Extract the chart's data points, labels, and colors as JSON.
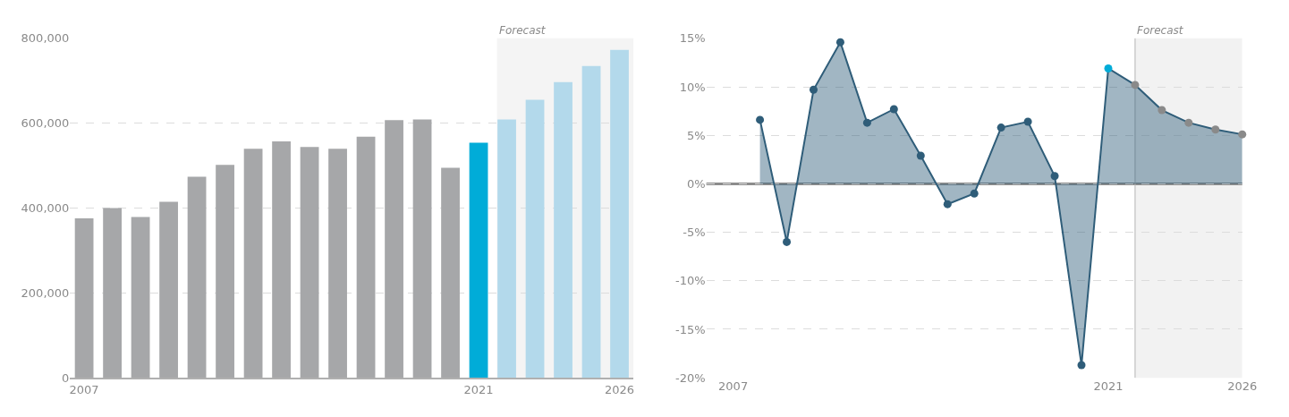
{
  "chart_data": [
    {
      "type": "bar",
      "x": [
        2007,
        2008,
        2009,
        2010,
        2011,
        2012,
        2013,
        2014,
        2015,
        2016,
        2017,
        2018,
        2019,
        2020,
        2021,
        2022,
        2023,
        2024,
        2025,
        2026
      ],
      "values": [
        376000,
        400000,
        379000,
        415000,
        474000,
        502000,
        540000,
        557000,
        544000,
        540000,
        568000,
        607000,
        609000,
        495000,
        554000,
        609000,
        655000,
        697000,
        735000,
        773000
      ],
      "colors": [
        "#a6a7a9",
        "#a6a7a9",
        "#a6a7a9",
        "#a6a7a9",
        "#a6a7a9",
        "#a6a7a9",
        "#a6a7a9",
        "#a6a7a9",
        "#a6a7a9",
        "#a6a7a9",
        "#a6a7a9",
        "#a6a7a9",
        "#a6a7a9",
        "#a6a7a9",
        "#00acd8",
        "#b3d9eb",
        "#b3d9eb",
        "#b3d9eb",
        "#b3d9eb",
        "#b3d9eb"
      ],
      "xlim": [
        2006.5,
        2026.5
      ],
      "xticks": [
        2007,
        2021,
        2026
      ],
      "ylim": [
        0,
        800000
      ],
      "yticks": [
        {
          "value": 0,
          "label": "0"
        },
        {
          "value": 200000,
          "label": "200,000"
        },
        {
          "value": 400000,
          "label": "400,000"
        },
        {
          "value": 600000,
          "label": "600,000"
        },
        {
          "value": 800000,
          "label": "800,000"
        }
      ],
      "grid": "y",
      "bands": [
        {
          "axis": "x",
          "from": 2021.65,
          "to": 2026.5,
          "label": "Forecast",
          "color": "#f4f4f4"
        }
      ]
    },
    {
      "type": "area",
      "marker": "circle",
      "x": [
        2008,
        2009,
        2010,
        2011,
        2012,
        2013,
        2014,
        2015,
        2016,
        2017,
        2018,
        2019,
        2020,
        2021,
        2022,
        2023,
        2024,
        2025,
        2026
      ],
      "series": [
        {
          "color": "#2f5d79",
          "values": [
            6.6,
            -6.0,
            9.7,
            14.6,
            6.3,
            7.7,
            2.9,
            -2.1,
            -1.0,
            5.8,
            6.4,
            0.8,
            -18.7,
            11.9,
            10.2,
            7.6,
            6.3,
            5.6,
            5.1
          ],
          "colors": [
            "#2f5d79",
            "#2f5d79",
            "#2f5d79",
            "#2f5d79",
            "#2f5d79",
            "#2f5d79",
            "#2f5d79",
            "#2f5d79",
            "#2f5d79",
            "#2f5d79",
            "#2f5d79",
            "#2f5d79",
            "#2f5d79",
            "#00acd8",
            "#8a8a8a",
            "#8a8a8a",
            "#8a8a8a",
            "#8a8a8a",
            "#8a8a8a"
          ]
        }
      ],
      "xlim": [
        2006,
        2026
      ],
      "xticks": [
        2007,
        2021,
        2026
      ],
      "ylim": [
        -20,
        15
      ],
      "yticks": [
        {
          "value": -20,
          "label": "-20%"
        },
        {
          "value": -15,
          "label": "-15%"
        },
        {
          "value": -10,
          "label": "-10%"
        },
        {
          "value": -5,
          "label": "-5%"
        },
        {
          "value": 0,
          "label": "0%"
        },
        {
          "value": 5,
          "label": "5%"
        },
        {
          "value": 10,
          "label": "10%"
        },
        {
          "value": 15,
          "label": "15%"
        }
      ],
      "grid": "y",
      "ref_lines": [
        {
          "axis": "y",
          "value": 0,
          "color": "#8c8c8c"
        },
        {
          "axis": "x",
          "value": 2022,
          "color": "#b5b5b5"
        }
      ],
      "bands": [
        {
          "axis": "x",
          "from": 2022,
          "to": 2026,
          "label": "Forecast",
          "color": "#f2f2f2"
        }
      ]
    }
  ]
}
